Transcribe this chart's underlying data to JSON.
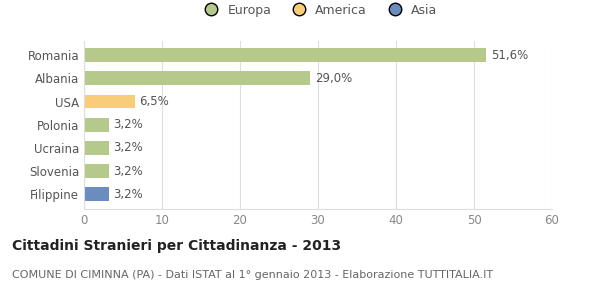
{
  "categories": [
    "Romania",
    "Albania",
    "USA",
    "Polonia",
    "Ucraina",
    "Slovenia",
    "Filippine"
  ],
  "values": [
    51.6,
    29.0,
    6.5,
    3.2,
    3.2,
    3.2,
    3.2
  ],
  "labels": [
    "51,6%",
    "29,0%",
    "6,5%",
    "3,2%",
    "3,2%",
    "3,2%",
    "3,2%"
  ],
  "colors": [
    "#b5c98a",
    "#b5c98a",
    "#f9cc7a",
    "#b5c98a",
    "#b5c98a",
    "#b5c98a",
    "#6b8cbf"
  ],
  "legend_labels": [
    "Europa",
    "America",
    "Asia"
  ],
  "legend_colors": [
    "#b5c98a",
    "#f9cc7a",
    "#6b8cbf"
  ],
  "xlim": [
    0,
    60
  ],
  "xticks": [
    0,
    10,
    20,
    30,
    40,
    50,
    60
  ],
  "title": "Cittadini Stranieri per Cittadinanza - 2013",
  "subtitle": "COMUNE DI CIMINNA (PA) - Dati ISTAT al 1° gennaio 2013 - Elaborazione TUTTITALIA.IT",
  "bg_color": "#ffffff",
  "grid_color": "#dddddd",
  "bar_height": 0.6,
  "title_fontsize": 10,
  "subtitle_fontsize": 8,
  "label_fontsize": 8.5,
  "tick_fontsize": 8.5,
  "legend_fontsize": 9
}
